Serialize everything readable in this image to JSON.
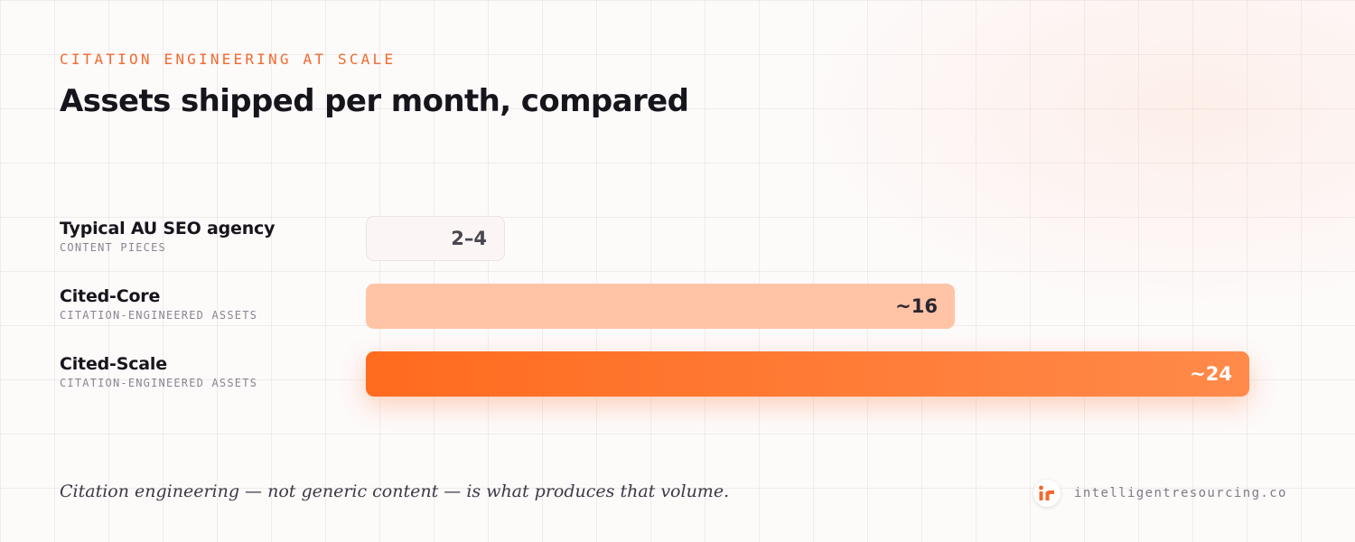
{
  "header": {
    "eyebrow": "CITATION ENGINEERING AT SCALE",
    "title": "Assets shipped per month, compared"
  },
  "chart_data": {
    "type": "bar",
    "orientation": "horizontal",
    "title": "Assets shipped per month, compared",
    "categories": [
      "Typical AU SEO agency",
      "Cited-Core",
      "Cited-Scale"
    ],
    "subtitles": [
      "CONTENT PIECES",
      "CITATION-ENGINEERED ASSETS",
      "CITATION-ENGINEERED ASSETS"
    ],
    "values": [
      3,
      16,
      24
    ],
    "value_labels": [
      "2–4",
      "~16",
      "~24"
    ],
    "colors": [
      "#fbf6f5",
      "#ffc3a6",
      "#ff6b1f"
    ],
    "xlim": [
      0,
      24
    ],
    "grid": false,
    "legend": "none"
  },
  "footer": {
    "note": "Citation engineering — not generic content — is what produces that volume.",
    "domain": "intelligentresourcing.co",
    "logo": "ir-logo-icon",
    "accent": "#f26a2e"
  }
}
